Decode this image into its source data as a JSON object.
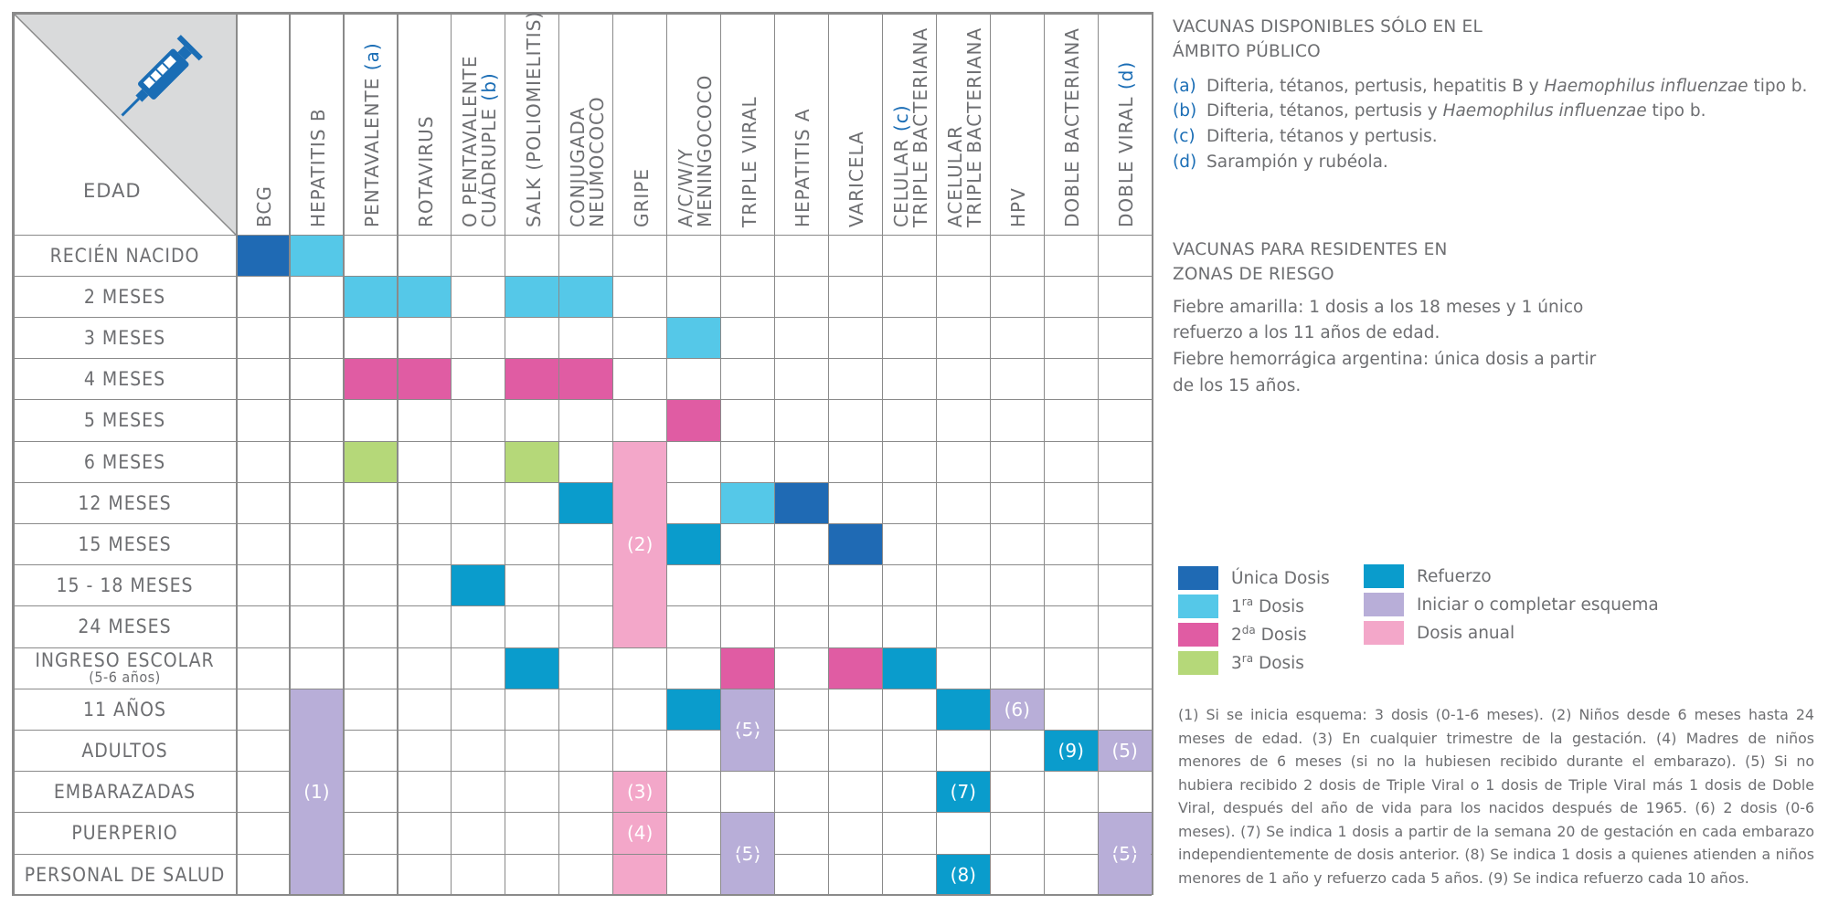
{
  "colors": {
    "unica": "#1f6ab4",
    "dosis1": "#55c8e8",
    "dosis2": "#e05ca3",
    "dosis3": "#b5d879",
    "refuerzo": "#0a9ccc",
    "esquema": "#b8aed8",
    "anual": "#f3a7c9",
    "corner": "#d9dadb",
    "accent": "#1a6db5",
    "icon": "#1a6db5"
  },
  "table": {
    "corner_label": "EDAD",
    "corner_icon": "syringe-icon",
    "columns": [
      {
        "lines": [
          "BCG"
        ]
      },
      {
        "lines": [
          "HEPATITIS B"
        ]
      },
      {
        "lines": [
          "PENTAVALENTE (a)"
        ]
      },
      {
        "lines": [
          "ROTAVIRUS"
        ]
      },
      {
        "lines": [
          "O PENTAVALENTE",
          "CUÁDRUPLE (b)"
        ]
      },
      {
        "lines": [
          "SALK (POLIOMIELITIS)"
        ]
      },
      {
        "lines": [
          "CONJUGADA",
          "NEUMOCOCO"
        ]
      },
      {
        "lines": [
          "GRIPE"
        ]
      },
      {
        "lines": [
          "A/C/W/Y",
          "MENINGOCOCO"
        ]
      },
      {
        "lines": [
          "TRIPLE VIRAL"
        ]
      },
      {
        "lines": [
          "HEPATITIS A"
        ]
      },
      {
        "lines": [
          "VARICELA"
        ]
      },
      {
        "lines": [
          "CELULAR (c)",
          "TRIPLE BACTERIANA"
        ]
      },
      {
        "lines": [
          "ACELULAR",
          "TRIPLE BACTERIANA"
        ]
      },
      {
        "lines": [
          "HPV"
        ]
      },
      {
        "lines": [
          "DOBLE BACTERIANA"
        ]
      },
      {
        "lines": [
          "DOBLE VIRAL (d)"
        ]
      }
    ],
    "rows": [
      {
        "label": "RECIÉN NACIDO",
        "sub": ""
      },
      {
        "label": "2 MESES",
        "sub": ""
      },
      {
        "label": "3 MESES",
        "sub": ""
      },
      {
        "label": "4 MESES",
        "sub": ""
      },
      {
        "label": "5 MESES",
        "sub": ""
      },
      {
        "label": "6 MESES",
        "sub": ""
      },
      {
        "label": "12 MESES",
        "sub": ""
      },
      {
        "label": "15 MESES",
        "sub": ""
      },
      {
        "label": "15 - 18 MESES",
        "sub": ""
      },
      {
        "label": "24 MESES",
        "sub": ""
      },
      {
        "label": "INGRESO ESCOLAR",
        "sub": "(5-6 años)"
      },
      {
        "label": "11 AÑOS",
        "sub": ""
      },
      {
        "label": "ADULTOS",
        "sub": ""
      },
      {
        "label": "EMBARAZADAS",
        "sub": ""
      },
      {
        "label": "PUERPERIO",
        "sub": ""
      },
      {
        "label": "PERSONAL DE SALUD",
        "sub": ""
      }
    ],
    "cells": [
      {
        "row": 0,
        "col": 0,
        "rows": 1,
        "type": "unica",
        "label": ""
      },
      {
        "row": 0,
        "col": 1,
        "rows": 1,
        "type": "dosis1",
        "label": ""
      },
      {
        "row": 1,
        "col": 2,
        "rows": 1,
        "type": "dosis1",
        "label": ""
      },
      {
        "row": 1,
        "col": 3,
        "rows": 1,
        "type": "dosis1",
        "label": ""
      },
      {
        "row": 1,
        "col": 5,
        "rows": 1,
        "type": "dosis1",
        "label": ""
      },
      {
        "row": 1,
        "col": 6,
        "rows": 1,
        "type": "dosis1",
        "label": ""
      },
      {
        "row": 2,
        "col": 8,
        "rows": 1,
        "type": "dosis1",
        "label": ""
      },
      {
        "row": 3,
        "col": 2,
        "rows": 1,
        "type": "dosis2",
        "label": ""
      },
      {
        "row": 3,
        "col": 3,
        "rows": 1,
        "type": "dosis2",
        "label": ""
      },
      {
        "row": 3,
        "col": 5,
        "rows": 1,
        "type": "dosis2",
        "label": ""
      },
      {
        "row": 3,
        "col": 6,
        "rows": 1,
        "type": "dosis2",
        "label": ""
      },
      {
        "row": 4,
        "col": 8,
        "rows": 1,
        "type": "dosis2",
        "label": ""
      },
      {
        "row": 5,
        "col": 2,
        "rows": 1,
        "type": "dosis3",
        "label": ""
      },
      {
        "row": 5,
        "col": 5,
        "rows": 1,
        "type": "dosis3",
        "label": ""
      },
      {
        "row": 5,
        "col": 7,
        "rows": 5,
        "type": "anual",
        "label": "(2)"
      },
      {
        "row": 6,
        "col": 6,
        "rows": 1,
        "type": "refuerzo",
        "label": ""
      },
      {
        "row": 6,
        "col": 9,
        "rows": 1,
        "type": "dosis1",
        "label": ""
      },
      {
        "row": 6,
        "col": 10,
        "rows": 1,
        "type": "unica",
        "label": ""
      },
      {
        "row": 7,
        "col": 8,
        "rows": 1,
        "type": "refuerzo",
        "label": ""
      },
      {
        "row": 7,
        "col": 11,
        "rows": 1,
        "type": "unica",
        "label": ""
      },
      {
        "row": 8,
        "col": 4,
        "rows": 1,
        "type": "refuerzo",
        "label": ""
      },
      {
        "row": 10,
        "col": 5,
        "rows": 1,
        "type": "refuerzo",
        "label": ""
      },
      {
        "row": 10,
        "col": 9,
        "rows": 1,
        "type": "dosis2",
        "label": ""
      },
      {
        "row": 10,
        "col": 11,
        "rows": 1,
        "type": "dosis2",
        "label": ""
      },
      {
        "row": 10,
        "col": 12,
        "rows": 1,
        "type": "refuerzo",
        "label": ""
      },
      {
        "row": 11,
        "col": 1,
        "rows": 5,
        "type": "esquema",
        "label": "(1)"
      },
      {
        "row": 11,
        "col": 8,
        "rows": 1,
        "type": "refuerzo",
        "label": ""
      },
      {
        "row": 11,
        "col": 9,
        "rows": 2,
        "type": "esquema",
        "label": "(5)"
      },
      {
        "row": 11,
        "col": 13,
        "rows": 1,
        "type": "refuerzo",
        "label": ""
      },
      {
        "row": 11,
        "col": 14,
        "rows": 1,
        "type": "esquema",
        "label": "(6)"
      },
      {
        "row": 12,
        "col": 15,
        "rows": 1,
        "type": "refuerzo",
        "label": "(9)"
      },
      {
        "row": 12,
        "col": 16,
        "rows": 1,
        "type": "esquema",
        "label": "(5)"
      },
      {
        "row": 13,
        "col": 7,
        "rows": 1,
        "type": "anual",
        "label": "(3)"
      },
      {
        "row": 13,
        "col": 13,
        "rows": 1,
        "type": "refuerzo",
        "label": "(7)"
      },
      {
        "row": 14,
        "col": 7,
        "rows": 1,
        "type": "anual",
        "label": "(4)"
      },
      {
        "row": 14,
        "col": 9,
        "rows": 2,
        "type": "esquema",
        "label": "(5)"
      },
      {
        "row": 14,
        "col": 16,
        "rows": 2,
        "type": "esquema",
        "label": "(5)"
      },
      {
        "row": 15,
        "col": 7,
        "rows": 1,
        "type": "anual",
        "label": ""
      },
      {
        "row": 15,
        "col": 13,
        "rows": 1,
        "type": "refuerzo",
        "label": "(8)"
      }
    ]
  },
  "side": {
    "public_title_1": "VACUNAS DISPONIBLES SÓLO EN EL",
    "public_title_2": "ÁMBITO PÚBLICO",
    "notes": [
      {
        "tag": "(a)",
        "text": "Difteria, tétanos, pertusis, hepatitis B y",
        "italic": "Haemophilus influenzae",
        "rest": " tipo b."
      },
      {
        "tag": "(b)",
        "text": "Difteria, tétanos, pertusis y",
        "italic": "Haemophilus influenzae",
        "rest": " tipo b."
      },
      {
        "tag": "(c)",
        "text": "Difteria, tétanos y pertusis.",
        "italic": "",
        "rest": ""
      },
      {
        "tag": "(d)",
        "text": "Sarampión y rubéola.",
        "italic": "",
        "rest": ""
      }
    ],
    "risk_title_1": "VACUNAS PARA RESIDENTES EN",
    "risk_title_2": "ZONAS DE RIESGO",
    "risk_line_1": "Fiebre amarilla: 1 dosis a los  18 meses y 1 único",
    "risk_line_2": "refuerzo a los 11 años de edad.",
    "risk_line_3": "Fiebre hemorrágica argentina: única dosis a partir",
    "risk_line_4": "de los 15 años."
  },
  "legend": [
    {
      "type": "unica",
      "label": "Única Dosis",
      "ord": "",
      "after": ""
    },
    {
      "type": "dosis1",
      "label": "1",
      "ord": "ra",
      "after": " Dosis"
    },
    {
      "type": "dosis2",
      "label": "2",
      "ord": "da",
      "after": " Dosis"
    },
    {
      "type": "dosis3",
      "label": "3",
      "ord": "ra",
      "after": " Dosis"
    },
    {
      "type": "refuerzo",
      "label": "Refuerzo",
      "ord": "",
      "after": ""
    },
    {
      "type": "esquema",
      "label": "Iniciar o completar esquema",
      "ord": "",
      "after": ""
    },
    {
      "type": "anual",
      "label": "Dosis anual",
      "ord": "",
      "after": ""
    }
  ],
  "footnotes": "(1) Si se inicia esquema: 3 dosis (0-1-6 meses). (2) Niños desde 6 meses hasta 24 meses de edad. (3) En cualquier trimestre de la gestación. (4) Madres de niños menores de 6 meses (si no la hubiesen recibido durante el embarazo). (5) Si no hubiera recibido 2 dosis de Triple Viral o 1 dosis de Triple Viral más 1 dosis de Doble Viral, después del año de vida para los nacidos después de 1965. (6) 2 dosis (0-6 meses). (7) Se indica 1 dosis a partir de la semana 20 de gestación en cada embarazo independientemente de dosis anterior. (8) Se indica 1 dosis a quienes atienden a niños menores de 1 año y refuerzo cada 5 años. (9) Se indica refuerzo cada 10 años."
}
